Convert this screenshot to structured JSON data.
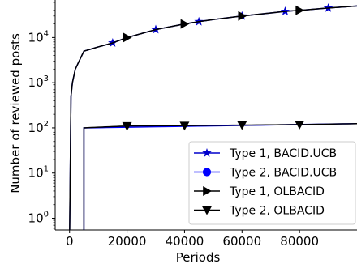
{
  "chart_data": {
    "type": "line",
    "xlabel": "Periods",
    "ylabel": "Number of reviewed posts",
    "xlim": [
      -5000,
      100000
    ],
    "ylim": [
      0.55,
      80000
    ],
    "yscale": "log",
    "x_ticks": [
      0,
      20000,
      40000,
      60000,
      80000
    ],
    "x_tick_labels": [
      "0",
      "20000",
      "40000",
      "60000",
      "80000"
    ],
    "y_ticks": [
      1,
      10,
      100,
      1000,
      10000
    ],
    "y_tick_labels": [
      {
        "base": "10",
        "exp": "0"
      },
      {
        "base": "10",
        "exp": "1"
      },
      {
        "base": "10",
        "exp": "2"
      },
      {
        "base": "10",
        "exp": "3"
      },
      {
        "base": "10",
        "exp": "4"
      }
    ],
    "grid": false,
    "legend_position": "lower-right",
    "series": [
      {
        "name": "Type 1, BACID.UCB",
        "color": "#0000cc",
        "marker": "star",
        "marker_x": [
          15000,
          30000,
          45000,
          60000,
          75000,
          90000
        ],
        "points": [
          [
            0,
            0.3
          ],
          [
            500,
            500
          ],
          [
            1000,
            1000
          ],
          [
            2000,
            2000
          ],
          [
            5000,
            5000
          ],
          [
            10000,
            6200
          ],
          [
            15000,
            7600
          ],
          [
            20000,
            10000
          ],
          [
            30000,
            15000
          ],
          [
            40000,
            20000
          ],
          [
            45000,
            22500
          ],
          [
            50000,
            25000
          ],
          [
            60000,
            30000
          ],
          [
            70000,
            35000
          ],
          [
            75000,
            38000
          ],
          [
            80000,
            40000
          ],
          [
            90000,
            45000
          ],
          [
            100000,
            50000
          ]
        ]
      },
      {
        "name": "Type 2, BACID.UCB",
        "color": "#0000ff",
        "marker": "circle",
        "marker_x": [],
        "points": [
          [
            5000,
            0.3
          ],
          [
            5000,
            100
          ],
          [
            100000,
            124
          ]
        ]
      },
      {
        "name": "Type 1, OLBACID",
        "color": "#000000",
        "marker": "triangle-right",
        "marker_x": [
          20000,
          40000,
          60000,
          80000
        ],
        "points": [
          [
            0,
            0.3
          ],
          [
            500,
            500
          ],
          [
            1000,
            1000
          ],
          [
            2000,
            2000
          ],
          [
            5000,
            5000
          ],
          [
            10000,
            6200
          ],
          [
            15000,
            7600
          ],
          [
            20000,
            10000
          ],
          [
            30000,
            15000
          ],
          [
            40000,
            20000
          ],
          [
            45000,
            22500
          ],
          [
            50000,
            25000
          ],
          [
            60000,
            30000
          ],
          [
            70000,
            35000
          ],
          [
            75000,
            38000
          ],
          [
            80000,
            40000
          ],
          [
            90000,
            45000
          ],
          [
            100000,
            50000
          ]
        ]
      },
      {
        "name": "Type 2, OLBACID",
        "color": "#000000",
        "marker": "triangle-down",
        "marker_x": [
          20000,
          40000,
          60000,
          80000
        ],
        "points": [
          [
            5000,
            0.3
          ],
          [
            5000,
            100
          ],
          [
            20000,
            110
          ],
          [
            40000,
            112
          ],
          [
            60000,
            115
          ],
          [
            80000,
            118
          ],
          [
            100000,
            124
          ]
        ]
      }
    ]
  }
}
